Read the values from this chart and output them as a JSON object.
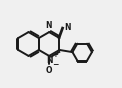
{
  "bg_color": "#f0f0f0",
  "bond_color": "#1a1a1a",
  "line_width": 1.4,
  "fig_width": 1.22,
  "fig_height": 0.88,
  "dpi": 100,
  "xlim": [
    0,
    11
  ],
  "ylim": [
    0,
    8
  ]
}
